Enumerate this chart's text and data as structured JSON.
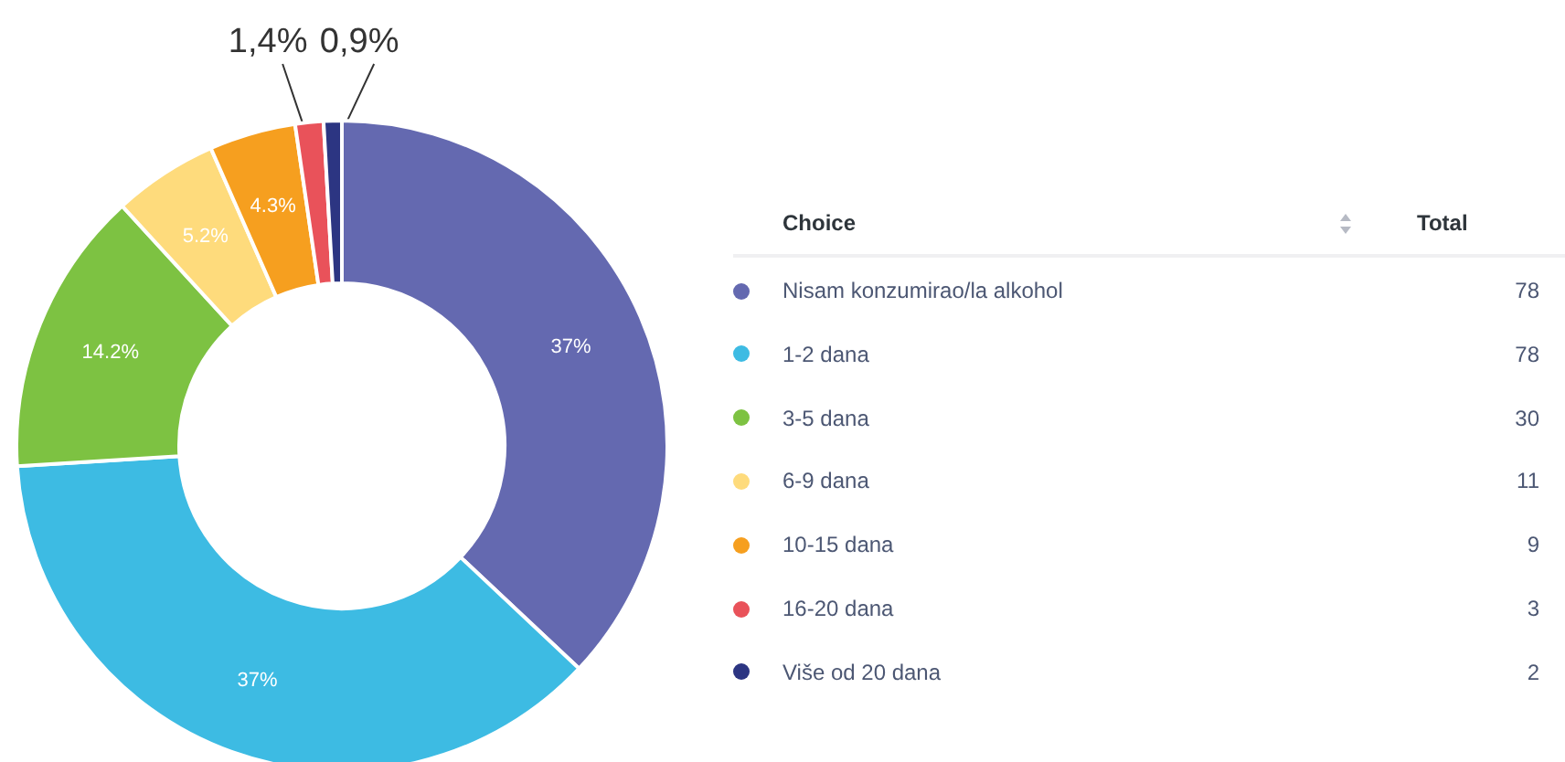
{
  "chart_data": [
    {
      "type": "donut",
      "categories": [
        "Nisam konzumirao/la alkohol",
        "1-2 dana",
        "3-5 dana",
        "6-9 dana",
        "10-15 dana",
        "16-20 dana",
        "Više od 20 dana"
      ],
      "values": [
        37,
        37,
        14.2,
        5.2,
        4.3,
        1.4,
        0.9
      ],
      "colors": [
        "#6469b0",
        "#3dbbe3",
        "#7dc242",
        "#fedb7c",
        "#f69f1f",
        "#e9525a",
        "#2c3582"
      ],
      "value_labels": [
        "37%",
        "37%",
        "14.2%",
        "5.2%",
        "4.3%",
        "1,4%",
        "0,9%"
      ],
      "legend": "right",
      "legend_title": "Choice"
    },
    {
      "type": "other",
      "title": "Total",
      "categories": [
        null,
        null,
        null,
        null,
        null,
        null,
        null
      ],
      "values": [
        78,
        78,
        30,
        11,
        9,
        3,
        2
      ],
      "data_labels": true
    }
  ]
}
